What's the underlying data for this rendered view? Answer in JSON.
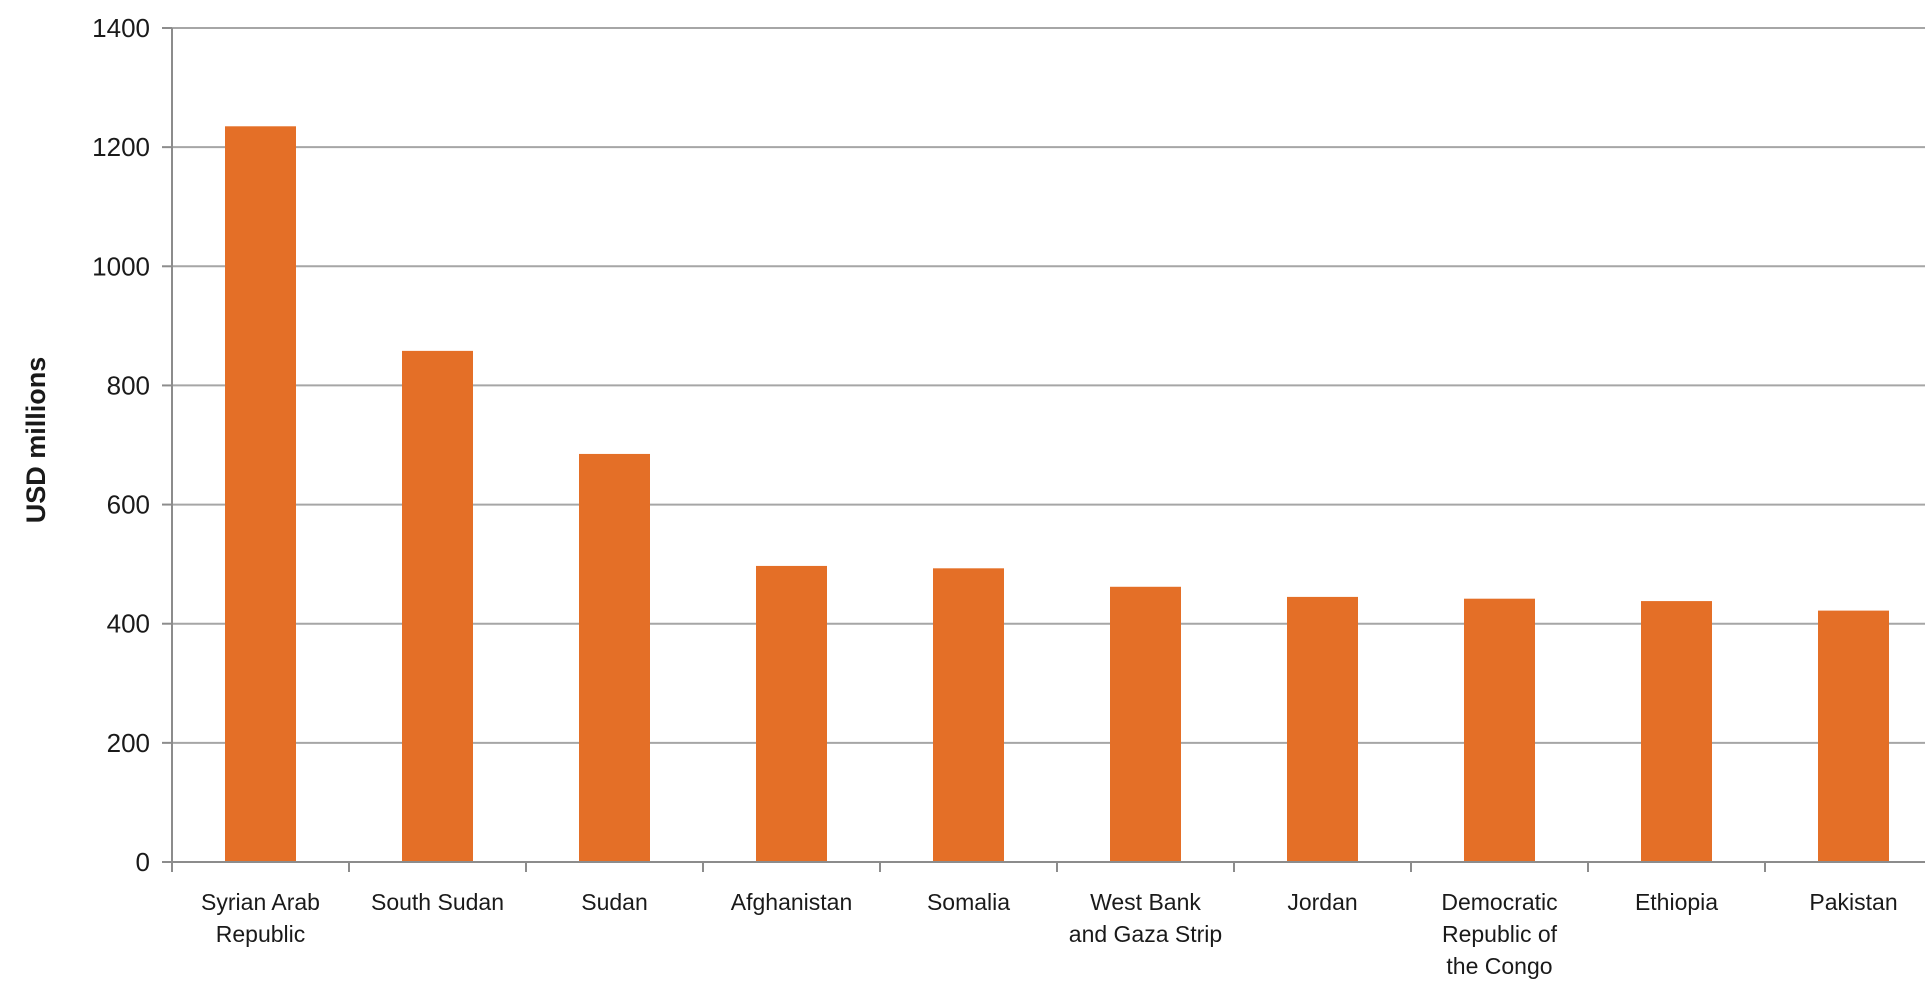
{
  "chart_data": {
    "type": "bar",
    "title": "",
    "xlabel": "",
    "ylabel": "USD millions",
    "ylim": [
      0,
      1400
    ],
    "yticks": [
      0,
      200,
      400,
      600,
      800,
      1000,
      1200,
      1400
    ],
    "grid": true,
    "legend": "none",
    "bar_color": "#E46F27",
    "grid_color": "#a6a6a6",
    "axis_color": "#8c8c8c",
    "categories": [
      [
        "Syrian Arab",
        "Republic"
      ],
      [
        "South Sudan"
      ],
      [
        "Sudan"
      ],
      [
        "Afghanistan"
      ],
      [
        "Somalia"
      ],
      [
        "West Bank",
        "and Gaza Strip"
      ],
      [
        "Jordan"
      ],
      [
        "Democratic",
        "Republic of",
        "the Congo"
      ],
      [
        "Ethiopia"
      ],
      [
        "Pakistan"
      ]
    ],
    "values": [
      1235,
      858,
      685,
      497,
      493,
      462,
      445,
      442,
      438,
      422
    ]
  }
}
